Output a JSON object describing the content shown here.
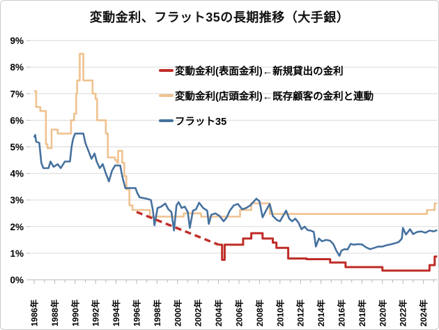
{
  "chart_data": {
    "type": "line",
    "title": "変動金利、フラット35の長期推移（大手銀）",
    "xlabel": "",
    "ylabel": "",
    "grid": true,
    "legend_position": "inside-top-right",
    "x_axis": {
      "ticks": [
        "1986年",
        "1988年",
        "1990年",
        "1992年",
        "1994年",
        "1996年",
        "1998年",
        "2000年",
        "2002年",
        "2004年",
        "2006年",
        "2008年",
        "2010年",
        "2012年",
        "2014年",
        "2016年",
        "2018年",
        "2020年",
        "2022年",
        "2024年"
      ],
      "tick_years": [
        1986,
        1988,
        1990,
        1992,
        1994,
        1996,
        1998,
        2000,
        2002,
        2004,
        2006,
        2008,
        2010,
        2012,
        2014,
        2016,
        2018,
        2020,
        2022,
        2024
      ],
      "range": [
        1986,
        2025.6
      ]
    },
    "y_axis": {
      "ticks": [
        "9%",
        "8%",
        "7%",
        "6%",
        "5%",
        "4%",
        "3%",
        "2%",
        "1%",
        "0%"
      ],
      "tick_values": [
        9,
        8,
        7,
        6,
        5,
        4,
        3,
        2,
        1,
        0
      ],
      "range": [
        0,
        9
      ],
      "unit": "%"
    },
    "series": [
      {
        "name": "変動金利(表面金利)←新規貸出の金利",
        "color": "#bf2c27",
        "line_style": "solid (dashed estimated segment 1996-2004)",
        "dashed_points": [
          [
            1996.0,
            2.55
          ],
          [
            2004.0,
            1.32
          ]
        ],
        "points": [
          [
            2004.0,
            1.32
          ],
          [
            2004.3,
            1.32
          ],
          [
            2004.35,
            0.75
          ],
          [
            2004.55,
            0.75
          ],
          [
            2004.6,
            1.32
          ],
          [
            2006.3,
            1.32
          ],
          [
            2006.4,
            1.55
          ],
          [
            2007.1,
            1.55
          ],
          [
            2007.2,
            1.75
          ],
          [
            2008.2,
            1.75
          ],
          [
            2008.3,
            1.55
          ],
          [
            2009.2,
            1.55
          ],
          [
            2009.3,
            1.4
          ],
          [
            2009.6,
            1.4
          ],
          [
            2009.65,
            1.2
          ],
          [
            2010.75,
            1.2
          ],
          [
            2010.8,
            0.8
          ],
          [
            2012.5,
            0.8
          ],
          [
            2012.6,
            0.775
          ],
          [
            2014.8,
            0.775
          ],
          [
            2014.9,
            0.65
          ],
          [
            2016.3,
            0.65
          ],
          [
            2016.4,
            0.475
          ],
          [
            2019.9,
            0.475
          ],
          [
            2020.0,
            0.345
          ],
          [
            2024.5,
            0.345
          ],
          [
            2024.6,
            0.55
          ],
          [
            2025.0,
            0.55
          ],
          [
            2025.1,
            0.875
          ],
          [
            2025.35,
            0.875
          ]
        ]
      },
      {
        "name": "変動金利(店頭金利)←既存顧客の金利と連動",
        "color": "#eec28f",
        "line_style": "solid",
        "points": [
          [
            1986.0,
            7.1
          ],
          [
            1986.2,
            6.5
          ],
          [
            1986.6,
            6.35
          ],
          [
            1987.1,
            6.35
          ],
          [
            1987.15,
            5.1
          ],
          [
            1987.3,
            4.95
          ],
          [
            1987.6,
            4.95
          ],
          [
            1987.7,
            5.65
          ],
          [
            1988.1,
            5.65
          ],
          [
            1988.3,
            5.5
          ],
          [
            1989.4,
            5.5
          ],
          [
            1989.6,
            6.0
          ],
          [
            1989.9,
            6.25
          ],
          [
            1990.1,
            7.0
          ],
          [
            1990.2,
            7.5
          ],
          [
            1990.4,
            7.5
          ],
          [
            1990.45,
            8.5
          ],
          [
            1990.75,
            8.5
          ],
          [
            1990.8,
            7.5
          ],
          [
            1991.5,
            7.5
          ],
          [
            1991.7,
            7.0
          ],
          [
            1992.0,
            6.8
          ],
          [
            1992.15,
            6.0
          ],
          [
            1992.8,
            6.0
          ],
          [
            1993.0,
            5.5
          ],
          [
            1993.2,
            4.6
          ],
          [
            1993.9,
            4.5
          ],
          [
            1994.1,
            4.4
          ],
          [
            1994.2,
            4.85
          ],
          [
            1994.5,
            4.85
          ],
          [
            1994.6,
            4.4
          ],
          [
            1994.8,
            3.9
          ],
          [
            1995.0,
            3.4
          ],
          [
            1995.3,
            2.8
          ],
          [
            1995.6,
            2.625
          ],
          [
            1997.2,
            2.625
          ],
          [
            1997.3,
            2.375
          ],
          [
            2000.5,
            2.375
          ],
          [
            2000.6,
            2.5
          ],
          [
            2002.2,
            2.5
          ],
          [
            2002.3,
            2.375
          ],
          [
            2006.0,
            2.375
          ],
          [
            2006.1,
            2.625
          ],
          [
            2007.1,
            2.625
          ],
          [
            2007.2,
            2.875
          ],
          [
            2008.9,
            2.875
          ],
          [
            2009.0,
            2.475
          ],
          [
            2024.2,
            2.475
          ],
          [
            2024.35,
            2.625
          ],
          [
            2025.0,
            2.625
          ],
          [
            2025.1,
            2.875
          ],
          [
            2025.35,
            2.875
          ]
        ]
      },
      {
        "name": "フラット35",
        "color": "#46719e",
        "line_style": "solid",
        "points": [
          [
            1986.0,
            5.35
          ],
          [
            1986.1,
            5.45
          ],
          [
            1986.2,
            5.2
          ],
          [
            1986.5,
            5.15
          ],
          [
            1986.7,
            4.4
          ],
          [
            1986.9,
            4.2
          ],
          [
            1987.4,
            4.2
          ],
          [
            1987.6,
            4.45
          ],
          [
            1987.9,
            4.25
          ],
          [
            1988.3,
            4.35
          ],
          [
            1988.6,
            4.2
          ],
          [
            1989.0,
            4.45
          ],
          [
            1989.5,
            4.45
          ],
          [
            1989.65,
            5.0
          ],
          [
            1989.8,
            5.3
          ],
          [
            1990.0,
            5.5
          ],
          [
            1990.8,
            5.5
          ],
          [
            1991.0,
            5.15
          ],
          [
            1991.3,
            4.85
          ],
          [
            1991.6,
            4.55
          ],
          [
            1991.9,
            4.75
          ],
          [
            1992.1,
            4.45
          ],
          [
            1992.4,
            4.2
          ],
          [
            1992.7,
            4.35
          ],
          [
            1993.0,
            4.0
          ],
          [
            1993.3,
            3.7
          ],
          [
            1993.6,
            4.1
          ],
          [
            1993.9,
            4.3
          ],
          [
            1994.4,
            4.3
          ],
          [
            1994.6,
            3.9
          ],
          [
            1994.9,
            3.45
          ],
          [
            1995.9,
            3.45
          ],
          [
            1996.05,
            3.28
          ],
          [
            1996.3,
            3.1
          ],
          [
            1997.0,
            3.05
          ],
          [
            1997.4,
            3.0
          ],
          [
            1997.6,
            2.6
          ],
          [
            1997.75,
            2.05
          ],
          [
            1998.05,
            2.7
          ],
          [
            1998.4,
            2.75
          ],
          [
            1998.8,
            2.87
          ],
          [
            1999.1,
            2.65
          ],
          [
            1999.4,
            2.55
          ],
          [
            1999.65,
            1.85
          ],
          [
            1999.9,
            2.8
          ],
          [
            2000.1,
            2.92
          ],
          [
            2000.4,
            2.7
          ],
          [
            2000.7,
            2.75
          ],
          [
            2001.0,
            2.55
          ],
          [
            2001.2,
            1.95
          ],
          [
            2001.5,
            2.6
          ],
          [
            2001.8,
            2.65
          ],
          [
            2002.1,
            2.9
          ],
          [
            2002.5,
            2.7
          ],
          [
            2002.9,
            2.6
          ],
          [
            2003.05,
            2.1
          ],
          [
            2003.3,
            2.45
          ],
          [
            2003.7,
            2.5
          ],
          [
            2004.1,
            2.4
          ],
          [
            2004.5,
            2.2
          ],
          [
            2004.8,
            2.35
          ],
          [
            2005.1,
            2.6
          ],
          [
            2005.5,
            2.8
          ],
          [
            2005.9,
            2.85
          ],
          [
            2006.3,
            2.65
          ],
          [
            2006.7,
            2.7
          ],
          [
            2007.1,
            2.8
          ],
          [
            2007.7,
            3.05
          ],
          [
            2008.0,
            2.95
          ],
          [
            2008.3,
            2.35
          ],
          [
            2008.7,
            2.65
          ],
          [
            2009.0,
            2.85
          ],
          [
            2009.3,
            2.4
          ],
          [
            2009.7,
            2.25
          ],
          [
            2010.0,
            2.2
          ],
          [
            2010.3,
            2.4
          ],
          [
            2010.6,
            2.6
          ],
          [
            2010.9,
            2.3
          ],
          [
            2011.2,
            2.2
          ],
          [
            2011.5,
            2.3
          ],
          [
            2011.8,
            2.15
          ],
          [
            2012.1,
            1.9
          ],
          [
            2012.4,
            2.0
          ],
          [
            2012.7,
            1.87
          ],
          [
            2013.0,
            1.85
          ],
          [
            2013.3,
            1.8
          ],
          [
            2013.5,
            1.25
          ],
          [
            2013.8,
            1.55
          ],
          [
            2014.1,
            1.45
          ],
          [
            2014.5,
            1.5
          ],
          [
            2014.9,
            1.47
          ],
          [
            2015.2,
            1.35
          ],
          [
            2015.5,
            1.1
          ],
          [
            2015.8,
            0.9
          ],
          [
            2016.0,
            1.1
          ],
          [
            2016.3,
            1.15
          ],
          [
            2016.6,
            1.14
          ],
          [
            2016.9,
            1.35
          ],
          [
            2017.2,
            1.32
          ],
          [
            2017.6,
            1.34
          ],
          [
            2018.0,
            1.33
          ],
          [
            2018.4,
            1.22
          ],
          [
            2018.8,
            1.15
          ],
          [
            2019.2,
            1.2
          ],
          [
            2019.6,
            1.25
          ],
          [
            2020.0,
            1.25
          ],
          [
            2020.4,
            1.3
          ],
          [
            2020.8,
            1.33
          ],
          [
            2021.2,
            1.37
          ],
          [
            2021.6,
            1.42
          ],
          [
            2021.9,
            1.55
          ],
          [
            2022.0,
            1.95
          ],
          [
            2022.3,
            1.7
          ],
          [
            2022.7,
            1.9
          ],
          [
            2023.0,
            1.72
          ],
          [
            2023.4,
            1.8
          ],
          [
            2023.8,
            1.82
          ],
          [
            2024.2,
            1.77
          ],
          [
            2024.6,
            1.85
          ],
          [
            2025.0,
            1.82
          ],
          [
            2025.35,
            1.87
          ]
        ]
      }
    ],
    "colors": {
      "grid": "#d9d9d9",
      "axis": "#b7b7b7",
      "text": "#000000",
      "background": "#ffffff"
    }
  }
}
